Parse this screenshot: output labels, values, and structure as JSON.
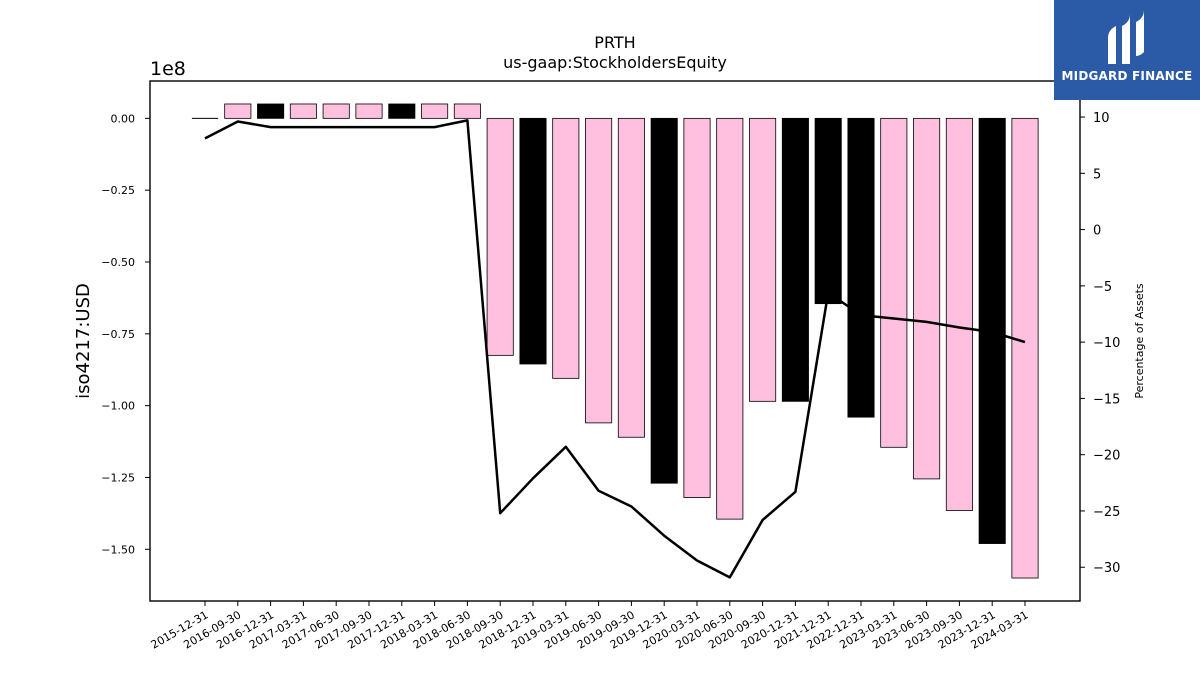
{
  "chart_data": {
    "type": "bar",
    "title": "PRTH",
    "subtitle": "us-gaap:StockholdersEquity",
    "ylabel": "iso4217:USD",
    "y_offset_label": "1e8",
    "y2label": "Percentage of Assets",
    "ylim": [
      -1.68,
      0.13
    ],
    "y2lim": [
      -33.0,
      13.2
    ],
    "yticks": [
      0.0,
      -0.25,
      -0.5,
      -0.75,
      -1.0,
      -1.25,
      -1.5
    ],
    "ytick_labels": [
      "0.00",
      "−0.25",
      "−0.50",
      "−0.75",
      "−1.00",
      "−1.25",
      "−1.50"
    ],
    "y2ticks": [
      10,
      5,
      0,
      -5,
      -10,
      -15,
      -20,
      -25,
      -30
    ],
    "y2tick_labels": [
      "10",
      "5",
      "0",
      "−5",
      "−10",
      "−15",
      "−20",
      "−25",
      "−30"
    ],
    "grid": false,
    "categories": [
      "2015-12-31",
      "2016-09-30",
      "2016-12-31",
      "2017-03-31",
      "2017-06-30",
      "2017-09-30",
      "2017-12-31",
      "2018-03-31",
      "2018-06-30",
      "2018-09-30",
      "2018-12-31",
      "2019-03-31",
      "2019-06-30",
      "2019-09-30",
      "2019-12-31",
      "2020-03-31",
      "2020-06-30",
      "2020-09-30",
      "2020-12-31",
      "2021-12-31",
      "2022-12-31",
      "2023-03-31",
      "2023-06-30",
      "2023-09-30",
      "2023-12-31",
      "2024-03-31"
    ],
    "series": [
      {
        "kind": "bar",
        "values": [
          0.0,
          0.05,
          0.05,
          0.05,
          0.05,
          0.05,
          0.05,
          0.05,
          0.05,
          -0.825,
          -0.855,
          -0.905,
          -1.06,
          -1.11,
          -1.27,
          -1.32,
          -1.395,
          -0.985,
          -0.985,
          -0.645,
          -1.04,
          -1.145,
          -1.255,
          -1.365,
          -1.48,
          -1.6
        ],
        "colors": [
          "#ffc0e0",
          "#ffc0e0",
          "#000000",
          "#ffc0e0",
          "#ffc0e0",
          "#ffc0e0",
          "#000000",
          "#ffc0e0",
          "#ffc0e0",
          "#ffc0e0",
          "#000000",
          "#ffc0e0",
          "#ffc0e0",
          "#ffc0e0",
          "#000000",
          "#ffc0e0",
          "#ffc0e0",
          "#ffc0e0",
          "#000000",
          "#000000",
          "#000000",
          "#ffc0e0",
          "#ffc0e0",
          "#ffc0e0",
          "#000000",
          "#ffc0e0"
        ]
      },
      {
        "kind": "line",
        "axis": "right",
        "color": "#000000",
        "values": [
          8.1,
          9.6,
          9.1,
          9.1,
          9.1,
          9.1,
          9.1,
          9.1,
          9.7,
          -25.2,
          -22.1,
          -19.3,
          -23.2,
          -24.6,
          -27.2,
          -29.4,
          -30.9,
          -25.8,
          -23.3,
          -5.6,
          -7.6,
          -7.9,
          -8.2,
          -8.7,
          -9.1,
          -10.0
        ]
      }
    ]
  },
  "brand": {
    "name": "MIDGARD FINANCE",
    "color": "#2b5aa6",
    "icon": "midgard-logo-icon"
  }
}
